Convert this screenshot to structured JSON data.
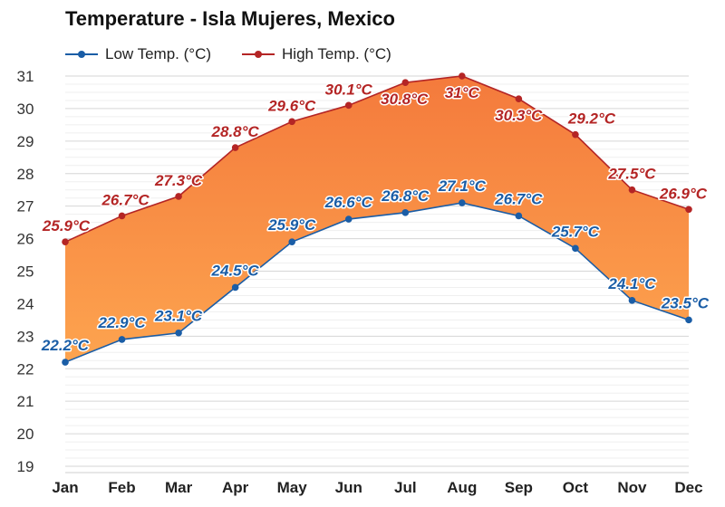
{
  "colors": {
    "low": "#1a5da6",
    "high": "#b42525",
    "fill_top": "#f47a3c",
    "fill_bottom": "#fda44f",
    "grid": "#e4e4e4"
  },
  "chart_data": {
    "type": "area",
    "title": "Temperature - Isla Mujeres, Mexico",
    "categories": [
      "Jan",
      "Feb",
      "Mar",
      "Apr",
      "May",
      "Jun",
      "Jul",
      "Aug",
      "Sep",
      "Oct",
      "Nov",
      "Dec"
    ],
    "series": [
      {
        "name": "Low Temp. (°C)",
        "values": [
          22.2,
          22.9,
          23.1,
          24.5,
          25.9,
          26.6,
          26.8,
          27.1,
          26.7,
          25.7,
          24.1,
          23.5
        ],
        "labels": [
          "22.2°C",
          "22.9°C",
          "23.1°C",
          "24.5°C",
          "25.9°C",
          "26.6°C",
          "26.8°C",
          "27.1°C",
          "26.7°C",
          "25.7°C",
          "24.1°C",
          "23.5°C"
        ]
      },
      {
        "name": "High Temp. (°C)",
        "values": [
          25.9,
          26.7,
          27.3,
          28.8,
          29.6,
          30.1,
          30.8,
          31,
          30.3,
          29.2,
          27.5,
          26.9
        ],
        "labels": [
          "25.9°C",
          "26.7°C",
          "27.3°C",
          "28.8°C",
          "29.6°C",
          "30.1°C",
          "30.8°C",
          "31°C",
          "30.3°C",
          "29.2°C",
          "27.5°C",
          "26.9°C"
        ]
      }
    ],
    "yticks": [
      "19",
      "20",
      "21",
      "22",
      "23",
      "24",
      "25",
      "26",
      "27",
      "28",
      "29",
      "30",
      "31"
    ],
    "ylim": [
      19,
      31
    ],
    "grid": true,
    "legend_position": "top-left"
  }
}
